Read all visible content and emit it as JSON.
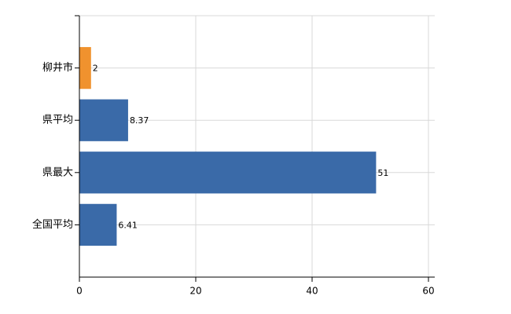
{
  "chart_data": {
    "type": "hbar",
    "categories": [
      "柳井市",
      "県平均",
      "県最大",
      "全国平均"
    ],
    "values": [
      2,
      8.37,
      51,
      6.41
    ],
    "colors": [
      "#f0922e",
      "#3a6aa8",
      "#3a6aa8",
      "#3a6aa8"
    ],
    "xlim": [
      0,
      60
    ],
    "xticks": [
      0,
      20,
      40,
      60
    ],
    "grid": true
  }
}
